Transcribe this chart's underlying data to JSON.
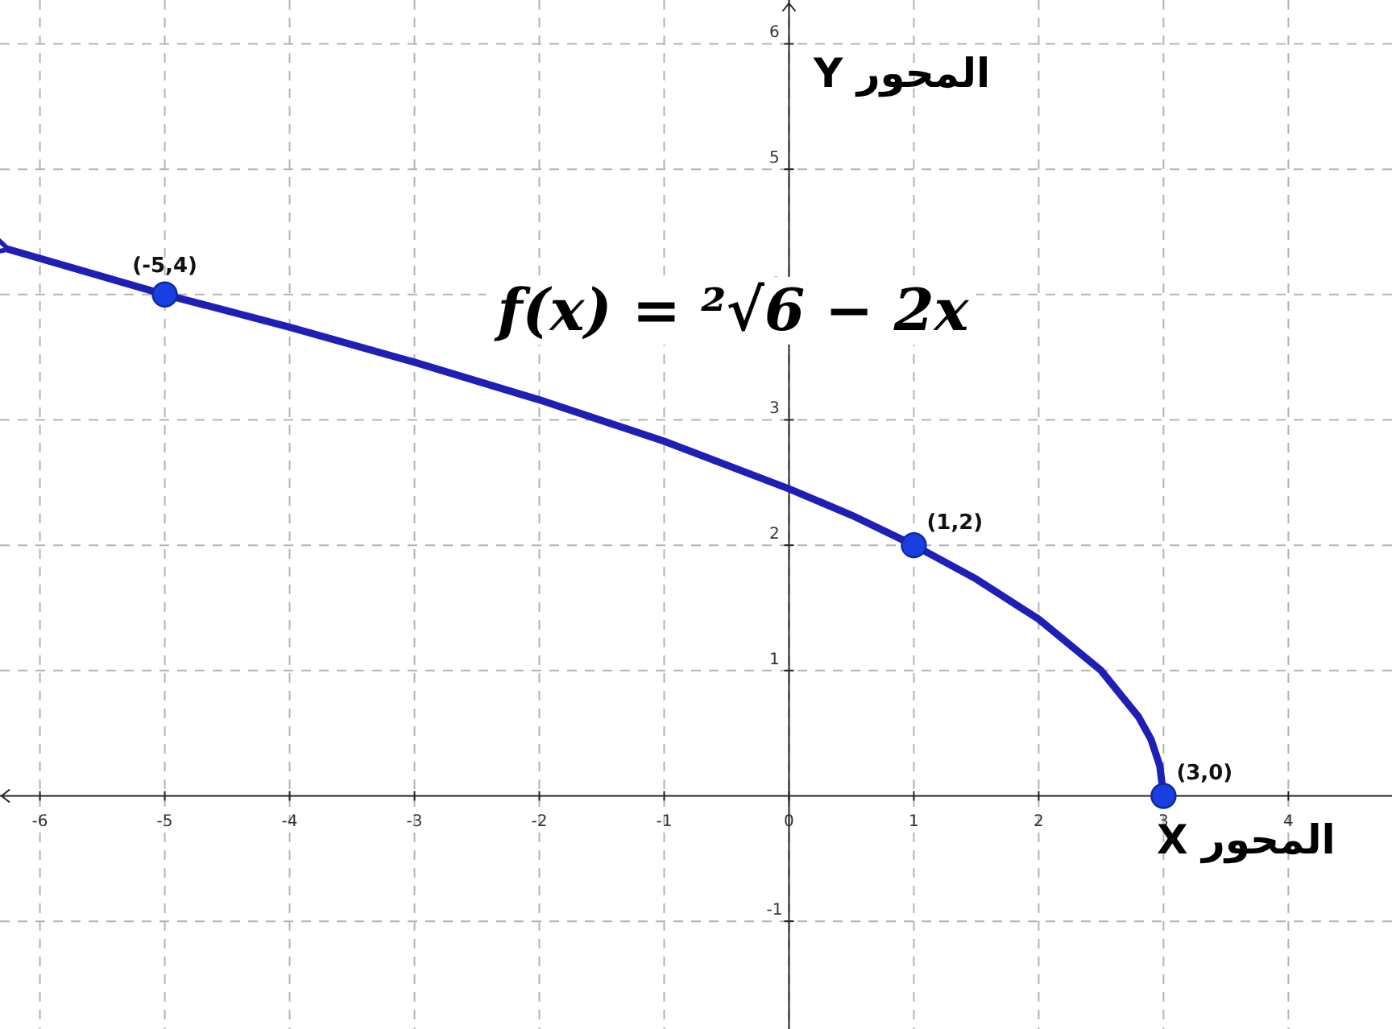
{
  "chart_data": {
    "type": "line",
    "title": "f(x) = ²√6 − 2x",
    "xlabel": "المحور X",
    "ylabel": "المحور Y",
    "series": [
      {
        "color": "#1f1fb8",
        "x": [
          -6.25,
          -5,
          -4,
          -3,
          -2,
          -1,
          0,
          0.5,
          1,
          1.5,
          2,
          2.5,
          2.8,
          2.9,
          2.97,
          3
        ],
        "values": [
          4.36,
          4,
          3.74,
          3.46,
          3.16,
          2.83,
          2.45,
          2.24,
          2,
          1.73,
          1.41,
          1,
          0.63,
          0.45,
          0.24,
          0
        ]
      },
      {
        "type": "scatter",
        "color": "#1a3fe0",
        "marker": "circle",
        "x": [
          -5,
          1,
          3
        ],
        "values": [
          4,
          2,
          0
        ]
      }
    ],
    "annotations": [
      {
        "text": "(-5,4)",
        "x": -5,
        "y": 4
      },
      {
        "text": "(1,2)",
        "x": 1,
        "y": 2
      },
      {
        "text": "(3,0)",
        "x": 3,
        "y": 0
      }
    ],
    "xlim": [
      -6.32,
      4.83
    ],
    "ylim": [
      -1.86,
      6.35
    ],
    "xticks": [
      -6,
      -5,
      -4,
      -3,
      -2,
      -1,
      0,
      1,
      2,
      3,
      4
    ],
    "yticks": [
      -1,
      1,
      2,
      3,
      4,
      5,
      6
    ],
    "grid": true
  }
}
